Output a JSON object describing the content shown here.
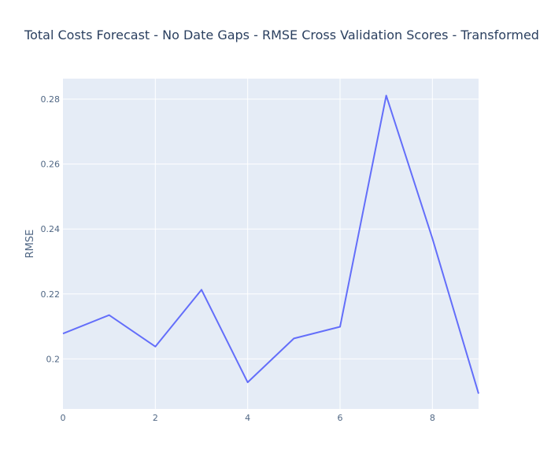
{
  "chart_data": {
    "type": "line",
    "title": "Total Costs Forecast - No Date Gaps - RMSE Cross Validation Scores - Transformed",
    "xlabel": "",
    "ylabel": "RMSE",
    "x": [
      0,
      1,
      2,
      3,
      4,
      5,
      6,
      7,
      8,
      9
    ],
    "series": [
      {
        "values": [
          0.2078,
          0.2135,
          0.2038,
          0.2213,
          0.1928,
          0.2063,
          0.2099,
          0.2811,
          0.2371,
          0.1893
        ]
      }
    ],
    "xlim": [
      0,
      9
    ],
    "ylim": [
      0.1846,
      0.2863
    ],
    "xticks": [
      0,
      2,
      4,
      6,
      8
    ],
    "xtick_labels": [
      "0",
      "2",
      "4",
      "6",
      "8"
    ],
    "yticks": [
      0.2,
      0.22,
      0.24,
      0.26,
      0.28
    ],
    "ytick_labels": [
      "0.2",
      "0.22",
      "0.24",
      "0.26",
      "0.28"
    ],
    "grid": true,
    "legend": "none",
    "colors": {
      "line": "#636efa",
      "plot_background": "#e5ecf6",
      "grid": "#ffffff",
      "title": "#2a3f5f",
      "ticks": "#506784"
    }
  }
}
